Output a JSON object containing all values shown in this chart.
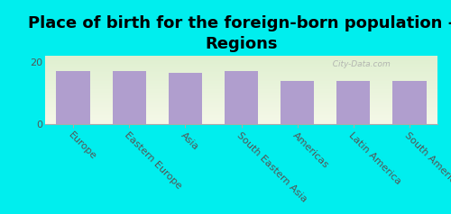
{
  "title": "Place of birth for the foreign-born population -\nRegions",
  "categories": [
    "Europe",
    "Eastern Europe",
    "Asia",
    "South Eastern Asia",
    "Americas",
    "Latin America",
    "South America"
  ],
  "values": [
    17,
    17,
    16.5,
    17,
    14,
    14,
    14
  ],
  "bar_color": "#b09ece",
  "background_color": "#00eeee",
  "plot_bg_color": "#eef5dc",
  "ylim": [
    0,
    22
  ],
  "yticks": [
    0,
    20
  ],
  "bar_width": 0.6,
  "title_fontsize": 13,
  "tick_fontsize": 8,
  "watermark": "  City-Data.com",
  "label_color": "#555555"
}
